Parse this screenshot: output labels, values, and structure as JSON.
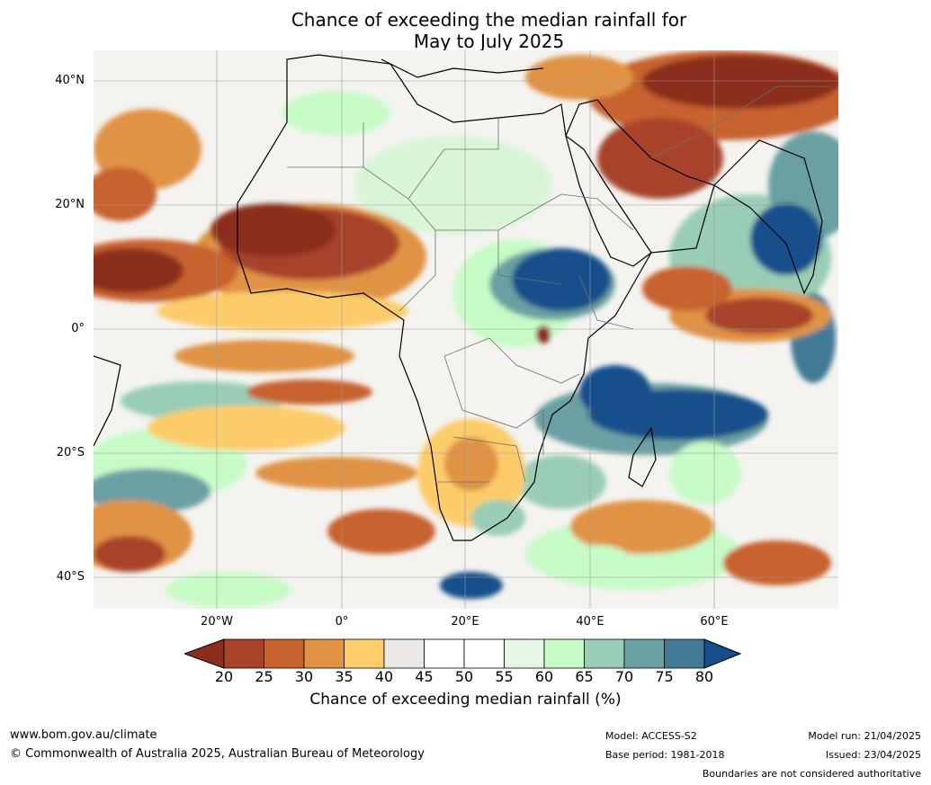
{
  "title": {
    "line1": "Chance of exceeding the median rainfall for",
    "line2": "May to July 2025"
  },
  "map": {
    "region": "Africa",
    "lat_ticks": [
      "40°N",
      "20°N",
      "0°",
      "20°S",
      "40°S"
    ],
    "lon_ticks": [
      "20°W",
      "0°",
      "20°E",
      "40°E",
      "60°E"
    ]
  },
  "legend": {
    "label": "Chance of exceeding median rainfall (%)",
    "ticks": [
      "20",
      "25",
      "30",
      "35",
      "40",
      "45",
      "50",
      "55",
      "60",
      "65",
      "70",
      "75",
      "80"
    ],
    "colors": [
      "#8c2d1e",
      "#a8432a",
      "#c8622f",
      "#e09344",
      "#fdcc6b",
      "#ece9e4",
      "#ffffff",
      "#ffffff",
      "#e6f6e6",
      "#c7fbc6",
      "#9acdb6",
      "#6ba0a3",
      "#427a96",
      "#154f8b"
    ]
  },
  "footer": {
    "url": "www.bom.gov.au/climate",
    "copyright": "© Commonwealth of Australia 2025, Australian Bureau of Meteorology",
    "model": "Model: ACCESS-S2",
    "base_period": "Base period: 1981-2018",
    "model_run": "Model run: 21/04/2025",
    "issued": "Issued: 23/04/2025",
    "disclaimer": "Boundaries are not considered authoritative"
  }
}
